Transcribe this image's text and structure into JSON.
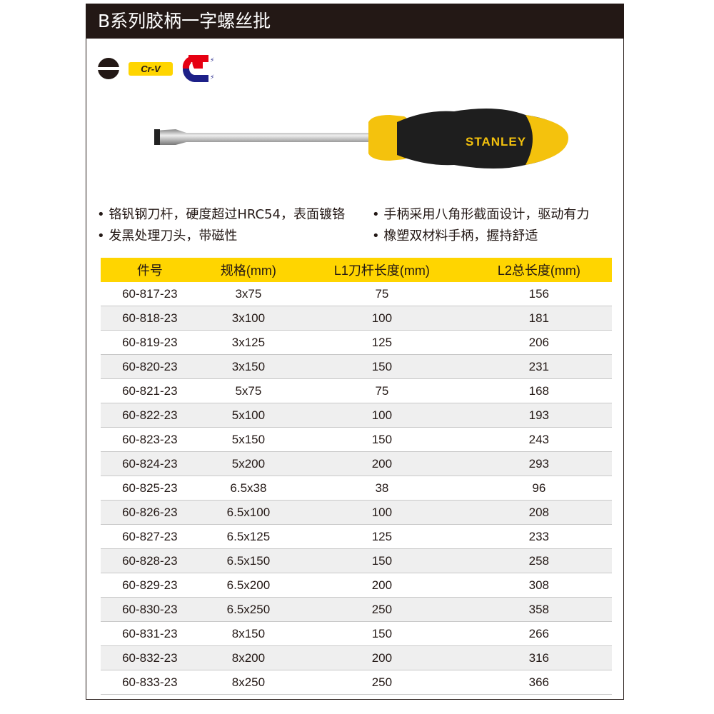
{
  "title": "B系列胶柄一字螺丝批",
  "icons": [
    {
      "name": "slotted-tip-icon"
    },
    {
      "name": "crv-badge",
      "label": "Cr-V"
    },
    {
      "name": "magnet-icon"
    }
  ],
  "brand": "STANLEY",
  "colors": {
    "title_bg": "#231815",
    "accent": "#ffd500",
    "magnet_red": "#e60012",
    "magnet_blue": "#1d2088"
  },
  "features": [
    "铬钒钢刀杆，硬度超过HRC54，表面镀铬",
    "手柄采用八角形截面设计，驱动有力",
    "发黑处理刀头，带磁性",
    "橡塑双材料手柄，握持舒适"
  ],
  "table": {
    "headers": [
      "件号",
      "规格(mm)",
      "L1刀杆长度(mm)",
      "L2总长度(mm)"
    ],
    "rows": [
      [
        "60-817-23",
        "3x75",
        "75",
        "156"
      ],
      [
        "60-818-23",
        "3x100",
        "100",
        "181"
      ],
      [
        "60-819-23",
        "3x125",
        "125",
        "206"
      ],
      [
        "60-820-23",
        "3x150",
        "150",
        "231"
      ],
      [
        "60-821-23",
        "5x75",
        "75",
        "168"
      ],
      [
        "60-822-23",
        "5x100",
        "100",
        "193"
      ],
      [
        "60-823-23",
        "5x150",
        "150",
        "243"
      ],
      [
        "60-824-23",
        "5x200",
        "200",
        "293"
      ],
      [
        "60-825-23",
        "6.5x38",
        "38",
        "96"
      ],
      [
        "60-826-23",
        "6.5x100",
        "100",
        "208"
      ],
      [
        "60-827-23",
        "6.5x125",
        "125",
        "233"
      ],
      [
        "60-828-23",
        "6.5x150",
        "150",
        "258"
      ],
      [
        "60-829-23",
        "6.5x200",
        "200",
        "308"
      ],
      [
        "60-830-23",
        "6.5x250",
        "250",
        "358"
      ],
      [
        "60-831-23",
        "8x150",
        "150",
        "266"
      ],
      [
        "60-832-23",
        "8x200",
        "200",
        "316"
      ],
      [
        "60-833-23",
        "8x250",
        "250",
        "366"
      ]
    ]
  }
}
